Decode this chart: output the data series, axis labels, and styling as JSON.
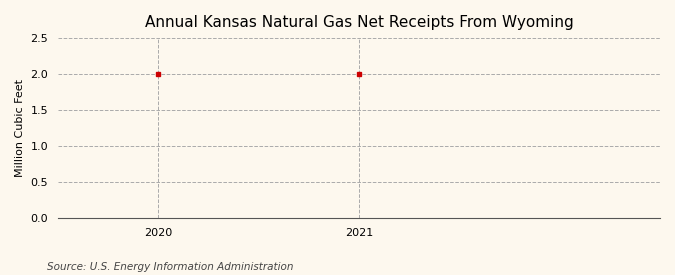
{
  "title": "Annual Kansas Natural Gas Net Receipts From Wyoming",
  "xlabel": "",
  "ylabel": "Million Cubic Feet",
  "x_values": [
    2020,
    2021
  ],
  "y_values": [
    2.0,
    2.0
  ],
  "ylim": [
    0.0,
    2.5
  ],
  "xlim": [
    2019.5,
    2022.5
  ],
  "yticks": [
    0.0,
    0.5,
    1.0,
    1.5,
    2.0,
    2.5
  ],
  "xticks": [
    2020,
    2021
  ],
  "marker_color": "#cc0000",
  "marker": "s",
  "marker_size": 3,
  "grid_color": "#aaaaaa",
  "vline_color": "#aaaaaa",
  "background_color": "#fdf8ee",
  "source_text": "Source: U.S. Energy Information Administration",
  "title_fontsize": 11,
  "label_fontsize": 8,
  "tick_fontsize": 8,
  "source_fontsize": 7.5
}
